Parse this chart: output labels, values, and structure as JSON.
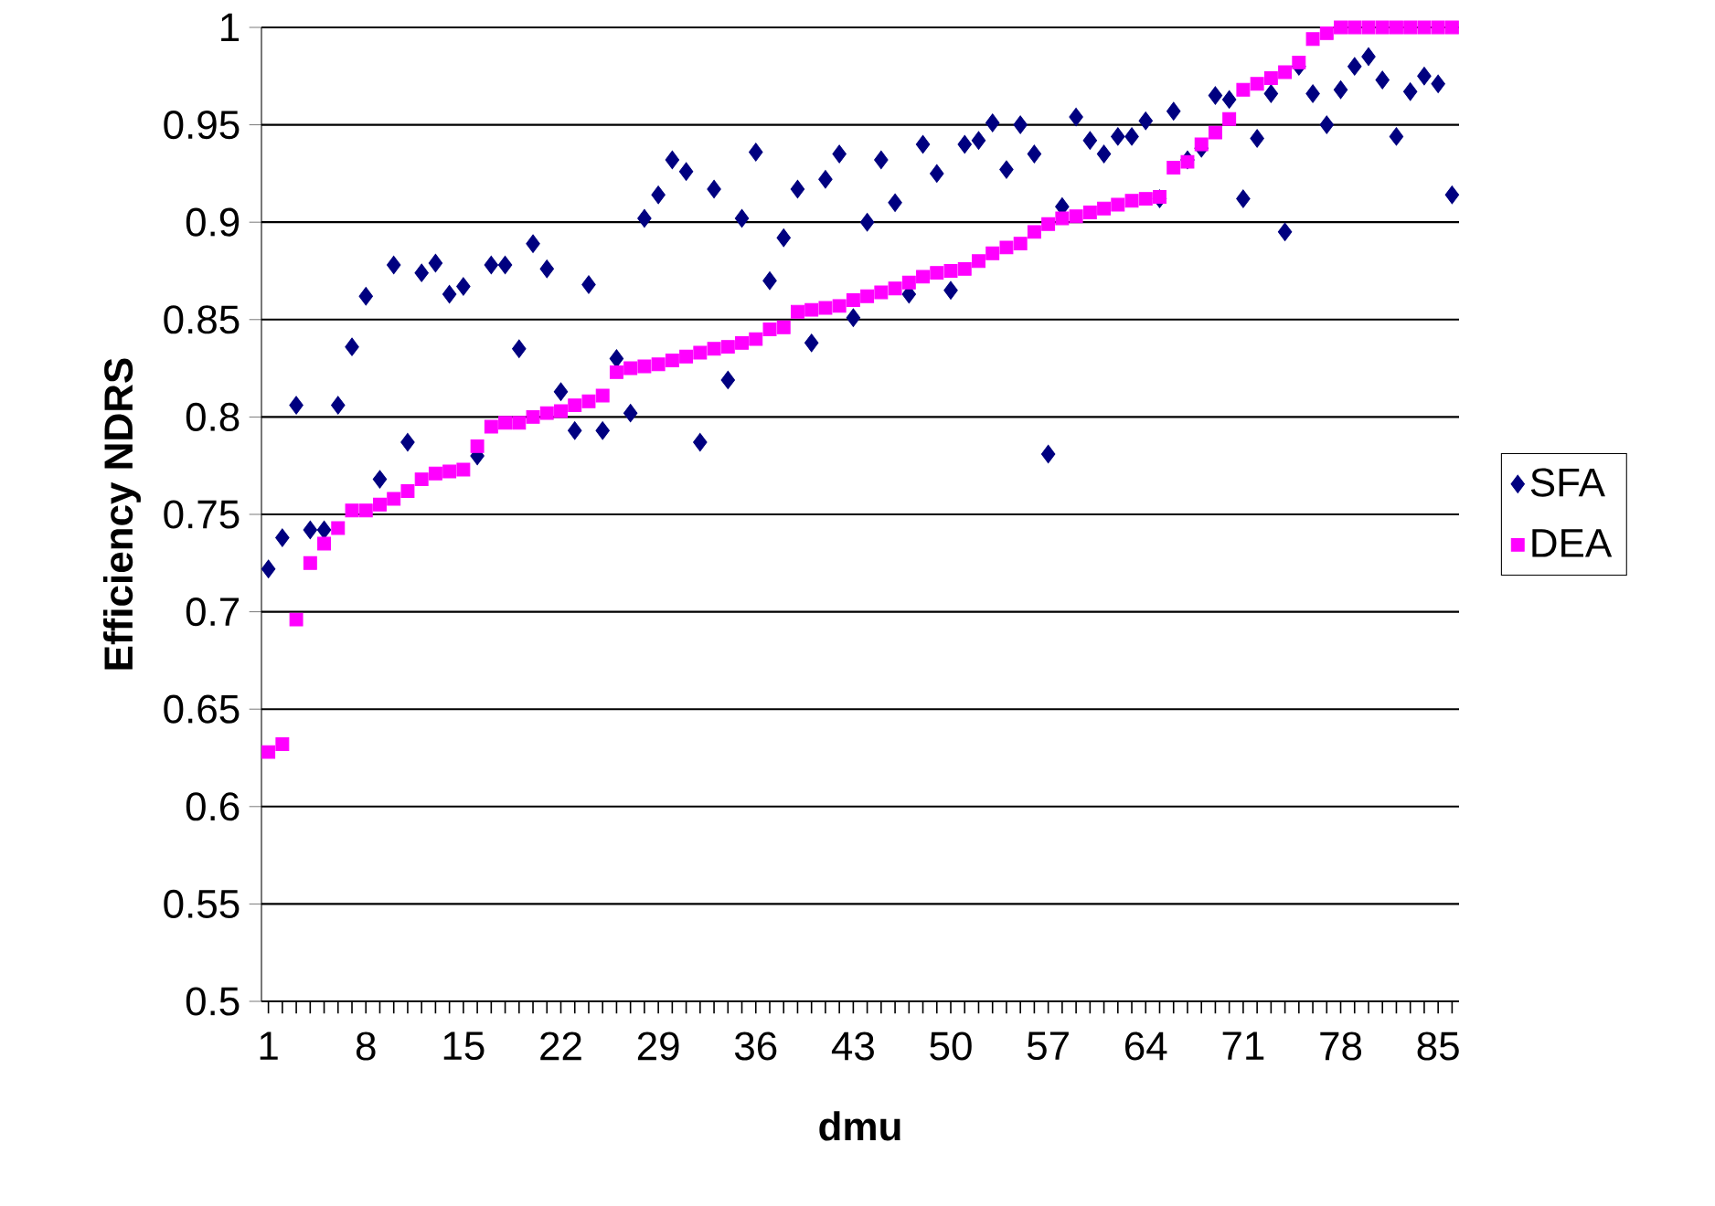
{
  "chart_data": {
    "type": "scatter",
    "xlabel": "dmu",
    "ylabel": "Efficiency NDRS",
    "categories": [
      "1",
      null,
      null,
      null,
      null,
      null,
      null,
      "8",
      null,
      null,
      null,
      null,
      null,
      null,
      "15",
      null,
      null,
      null,
      null,
      null,
      null,
      "22",
      null,
      null,
      null,
      null,
      null,
      null,
      "29",
      null,
      null,
      null,
      null,
      null,
      null,
      "36",
      null,
      null,
      null,
      null,
      null,
      null,
      "43",
      null,
      null,
      null,
      null,
      null,
      null,
      "50",
      null,
      null,
      null,
      null,
      null,
      null,
      "57",
      null,
      null,
      null,
      null,
      null,
      null,
      "64",
      null,
      null,
      null,
      null,
      null,
      null,
      "71",
      null,
      null,
      null,
      null,
      null,
      null,
      "78",
      null,
      null,
      null,
      null,
      null,
      null,
      "85",
      null
    ],
    "series": [
      {
        "name": "SFA",
        "color": "#000080",
        "marker": "diamond",
        "values": [
          0.722,
          0.738,
          0.806,
          0.742,
          0.742,
          0.806,
          0.836,
          0.862,
          0.768,
          0.878,
          0.787,
          0.874,
          0.879,
          0.863,
          0.867,
          0.78,
          0.878,
          0.878,
          0.835,
          0.889,
          0.876,
          0.813,
          0.793,
          0.868,
          0.793,
          0.83,
          0.802,
          0.902,
          0.914,
          0.932,
          0.926,
          0.787,
          0.917,
          0.819,
          0.902,
          0.936,
          0.87,
          0.892,
          0.917,
          0.838,
          0.922,
          0.935,
          0.851,
          0.9,
          0.932,
          0.91,
          0.863,
          0.94,
          0.925,
          0.865,
          0.94,
          0.942,
          0.951,
          0.927,
          0.95,
          0.935,
          0.781,
          0.908,
          0.954,
          0.942,
          0.935,
          0.944,
          0.944,
          0.952,
          0.912,
          0.957,
          0.932,
          0.938,
          0.965,
          0.963,
          0.912,
          0.943,
          0.966,
          0.895,
          0.98,
          0.966,
          0.95,
          0.968,
          0.98,
          0.985,
          0.973,
          0.944,
          0.967,
          0.975,
          0.971,
          0.914
        ]
      },
      {
        "name": "DEA",
        "color": "#ff00ff",
        "marker": "square",
        "values": [
          0.628,
          0.632,
          0.696,
          0.725,
          0.735,
          0.743,
          0.752,
          0.752,
          0.755,
          0.758,
          0.762,
          0.768,
          0.771,
          0.772,
          0.773,
          0.785,
          0.795,
          0.797,
          0.797,
          0.8,
          0.802,
          0.803,
          0.806,
          0.808,
          0.811,
          0.823,
          0.825,
          0.826,
          0.827,
          0.829,
          0.831,
          0.833,
          0.835,
          0.836,
          0.838,
          0.84,
          0.845,
          0.846,
          0.854,
          0.855,
          0.856,
          0.857,
          0.86,
          0.862,
          0.864,
          0.866,
          0.869,
          0.872,
          0.874,
          0.875,
          0.876,
          0.88,
          0.884,
          0.887,
          0.889,
          0.895,
          0.899,
          0.902,
          0.903,
          0.905,
          0.907,
          0.909,
          0.911,
          0.912,
          0.913,
          0.928,
          0.931,
          0.94,
          0.946,
          0.953,
          0.968,
          0.971,
          0.974,
          0.977,
          0.982,
          0.994,
          0.997,
          1,
          1,
          1,
          1,
          1,
          1,
          1,
          1,
          1
        ]
      }
    ],
    "ylim": [
      0.5,
      1
    ],
    "yticks": [
      0.5,
      0.55,
      0.6,
      0.65,
      0.7,
      0.75,
      0.8,
      0.85,
      0.9,
      0.95,
      1
    ],
    "grid": "y",
    "legend": "right"
  }
}
